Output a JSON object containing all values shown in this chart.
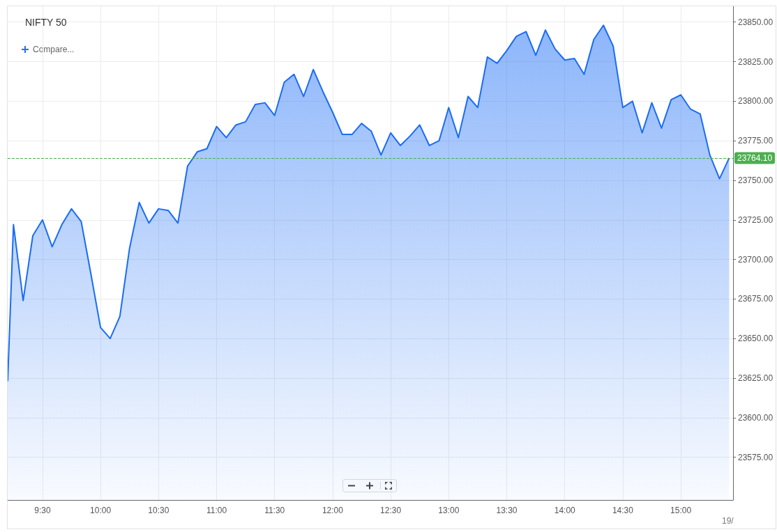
{
  "chart_data": {
    "type": "area",
    "title": "NIFTY 50",
    "x": [
      9.2,
      9.25,
      9.3333,
      9.4167,
      9.5,
      9.5833,
      9.6667,
      9.75,
      9.8333,
      9.9167,
      10,
      10.0833,
      10.1667,
      10.25,
      10.3333,
      10.4167,
      10.5,
      10.5833,
      10.6667,
      10.75,
      10.8333,
      10.9167,
      11,
      11.0833,
      11.1667,
      11.25,
      11.3333,
      11.4167,
      11.5,
      11.5833,
      11.6667,
      11.75,
      11.8333,
      11.9167,
      12,
      12.0833,
      12.1667,
      12.25,
      12.3333,
      12.4167,
      12.5,
      12.5833,
      12.6667,
      12.75,
      12.8333,
      12.9167,
      13,
      13.0833,
      13.1667,
      13.25,
      13.3333,
      13.4167,
      13.5,
      13.5833,
      13.6667,
      13.75,
      13.8333,
      13.9167,
      14,
      14.0833,
      14.1667,
      14.25,
      14.3333,
      14.4167,
      14.5,
      14.5833,
      14.6667,
      14.75,
      14.8333,
      14.9167,
      15,
      15.0833,
      15.1667,
      15.25,
      15.3333,
      15.4167
    ],
    "values": [
      23623,
      23722,
      23674,
      23715,
      23725,
      23708,
      23722,
      23732,
      23724,
      23691,
      23657,
      23650,
      23664,
      23707,
      23736,
      23723,
      23732,
      23731,
      23723,
      23759,
      23768,
      23770,
      23784,
      23777,
      23785,
      23787,
      23798,
      23799,
      23791,
      23812,
      23817,
      23803,
      23820,
      23806,
      23793,
      23779,
      23779,
      23786,
      23781,
      23766,
      23780,
      23772,
      23778,
      23785,
      23772,
      23775,
      23796,
      23777,
      23803,
      23796,
      23828,
      23824,
      23832,
      23841,
      23844,
      23829,
      23845,
      23833,
      23826,
      23827,
      23817,
      23839,
      23848,
      23835,
      23796,
      23800,
      23780,
      23799,
      23783,
      23801,
      23804,
      23795,
      23792,
      23766,
      23751,
      23764.1
    ],
    "color": "#1a6cf6",
    "marker": "none",
    "xlim": [
      9.2,
      15.45
    ],
    "xticks": [
      {
        "value": 9.5,
        "label": "9:30"
      },
      {
        "value": 10,
        "label": "10:00"
      },
      {
        "value": 10.5,
        "label": "10:30"
      },
      {
        "value": 11,
        "label": "11:00"
      },
      {
        "value": 11.5,
        "label": "11:30"
      },
      {
        "value": 12,
        "label": "12:00"
      },
      {
        "value": 12.5,
        "label": "12:30"
      },
      {
        "value": 13,
        "label": "13:00"
      },
      {
        "value": 13.5,
        "label": "13:30"
      },
      {
        "value": 14,
        "label": "14:00"
      },
      {
        "value": 14.5,
        "label": "14:30"
      },
      {
        "value": 15,
        "label": "15:00"
      }
    ],
    "ylim": [
      23548,
      23860
    ],
    "yticks": [
      {
        "value": 23575,
        "label": "23575.00"
      },
      {
        "value": 23600,
        "label": "23600.00"
      },
      {
        "value": 23625,
        "label": "23625.00"
      },
      {
        "value": 23650,
        "label": "23650.00"
      },
      {
        "value": 23675,
        "label": "23675.00"
      },
      {
        "value": 23700,
        "label": "23700.00"
      },
      {
        "value": 23725,
        "label": "23725.00"
      },
      {
        "value": 23750,
        "label": "23750.00"
      },
      {
        "value": 23775,
        "label": "23775.00"
      },
      {
        "value": 23800,
        "label": "23800.00"
      },
      {
        "value": 23825,
        "label": "23825.00"
      },
      {
        "value": 23850,
        "label": "23850.00"
      }
    ],
    "grid": true,
    "ref_lines": [
      {
        "axis": "y",
        "value": 23764.1,
        "label": "23764.10",
        "color": "#4caf50",
        "line_style": "dashed"
      }
    ],
    "annotations": [
      "Compare...",
      "19/"
    ]
  }
}
